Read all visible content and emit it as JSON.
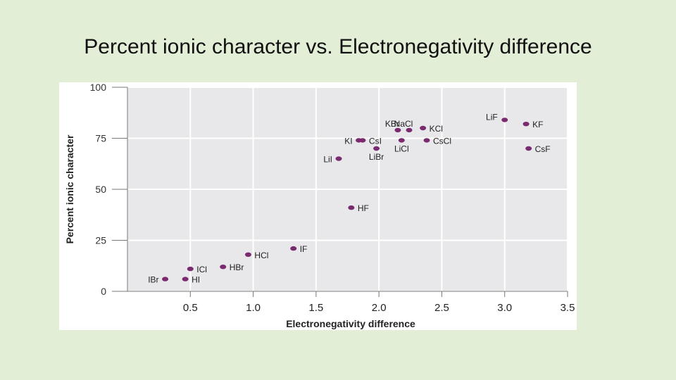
{
  "slide": {
    "title": "Percent ionic character vs. Electronegativity difference"
  },
  "chart_data": {
    "type": "scatter",
    "title": "Percent ionic character vs. Electronegativity difference",
    "xlabel": "Electronegativity difference",
    "ylabel": "Percent ionic character",
    "xlim": [
      0,
      3.5
    ],
    "ylim": [
      0,
      100
    ],
    "xticks": [
      "0.5",
      "1.0",
      "1.5",
      "2.0",
      "2.5",
      "3.0",
      "3.5"
    ],
    "yticks": [
      "0",
      "25",
      "50",
      "75",
      "100"
    ],
    "grid": true,
    "point_color": "#7a2a6e",
    "points": [
      {
        "label": "IBr",
        "x": 0.3,
        "y": 6
      },
      {
        "label": "HI",
        "x": 0.46,
        "y": 6
      },
      {
        "label": "ICl",
        "x": 0.5,
        "y": 11
      },
      {
        "label": "HBr",
        "x": 0.76,
        "y": 12
      },
      {
        "label": "HCl",
        "x": 0.96,
        "y": 18
      },
      {
        "label": "IF",
        "x": 1.32,
        "y": 21
      },
      {
        "label": "HF",
        "x": 1.78,
        "y": 41
      },
      {
        "label": "LiI",
        "x": 1.68,
        "y": 65
      },
      {
        "label": "KI",
        "x": 1.84,
        "y": 74
      },
      {
        "label": "CsI",
        "x": 1.87,
        "y": 74
      },
      {
        "label": "LiBr",
        "x": 1.98,
        "y": 70
      },
      {
        "label": "KBr",
        "x": 2.15,
        "y": 79
      },
      {
        "label": "NaCl",
        "x": 2.24,
        "y": 79
      },
      {
        "label": "LiCl",
        "x": 2.18,
        "y": 74
      },
      {
        "label": "KCl",
        "x": 2.35,
        "y": 80
      },
      {
        "label": "CsCl",
        "x": 2.38,
        "y": 74
      },
      {
        "label": "LiF",
        "x": 3.0,
        "y": 84
      },
      {
        "label": "KF",
        "x": 3.17,
        "y": 82
      },
      {
        "label": "CsF",
        "x": 3.19,
        "y": 70
      }
    ]
  }
}
